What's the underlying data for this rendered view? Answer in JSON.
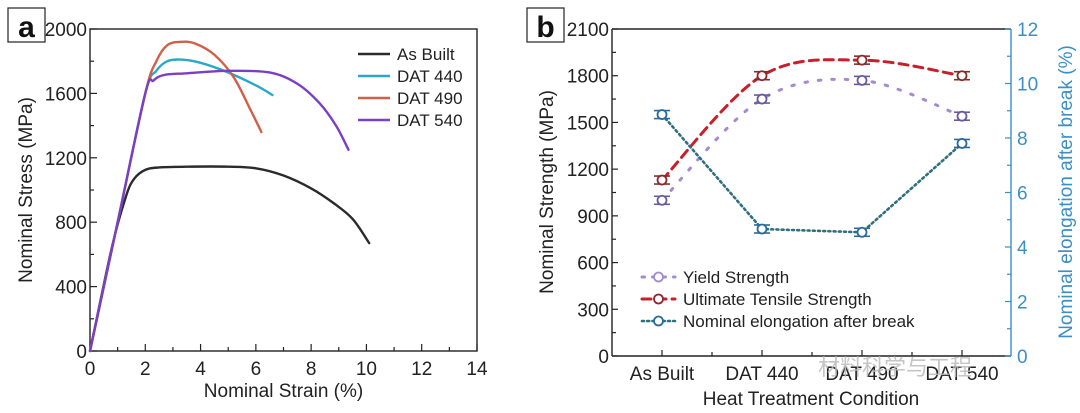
{
  "chart_data": [
    {
      "panel": "a",
      "type": "line",
      "title": "",
      "xlabel": "Nominal Strain (%)",
      "ylabel": "Nominal Stress (MPa)",
      "xlim": [
        0,
        14
      ],
      "ylim": [
        0,
        2000
      ],
      "xticks": [
        "0",
        "2",
        "4",
        "6",
        "8",
        "10",
        "12",
        "14"
      ],
      "yticks": [
        "0",
        "400",
        "800",
        "1200",
        "1600",
        "2000"
      ],
      "legend_position": "top-right",
      "grid": false,
      "series": [
        {
          "name": "As Built",
          "color": "#2b2b2b",
          "x": [
            0,
            0.8,
            1.3,
            1.6,
            2.0,
            2.5,
            3.5,
            5.0,
            6.0,
            7.0,
            8.0,
            8.8,
            9.5,
            10.1
          ],
          "y": [
            0,
            650,
            960,
            1070,
            1125,
            1140,
            1145,
            1145,
            1135,
            1090,
            1010,
            920,
            820,
            670
          ]
        },
        {
          "name": "DAT 440",
          "color": "#2aa8c8",
          "x": [
            0,
            1.0,
            2.0,
            2.4,
            2.8,
            3.3,
            4.0,
            5.0,
            6.0,
            6.6
          ],
          "y": [
            0,
            800,
            1600,
            1740,
            1800,
            1810,
            1790,
            1730,
            1650,
            1590
          ]
        },
        {
          "name": "DAT 490",
          "color": "#d0604a",
          "x": [
            0,
            1.0,
            2.0,
            2.4,
            2.8,
            3.3,
            3.8,
            4.5,
            5.2,
            5.8,
            6.2
          ],
          "y": [
            0,
            800,
            1600,
            1800,
            1900,
            1920,
            1910,
            1840,
            1700,
            1500,
            1360
          ]
        },
        {
          "name": "DAT 540",
          "color": "#7b3fc4",
          "x": [
            0,
            1.0,
            2.0,
            2.3,
            2.7,
            3.5,
            5.0,
            6.5,
            7.5,
            8.3,
            8.9,
            9.35
          ],
          "y": [
            0,
            800,
            1600,
            1680,
            1715,
            1725,
            1740,
            1730,
            1660,
            1540,
            1400,
            1250
          ]
        }
      ]
    },
    {
      "panel": "b",
      "type": "line",
      "title": "",
      "xlabel": "Heat Treatment Condition",
      "ylabel": "Nominal Strength (MPa)",
      "y2label": "Nominal elongation after break (%)",
      "categories": [
        "As Built",
        "DAT 440",
        "DAT 490",
        "DAT 540"
      ],
      "ylim": [
        0,
        2100
      ],
      "y2lim": [
        0,
        12
      ],
      "yticks": [
        "0",
        "300",
        "600",
        "900",
        "1200",
        "1500",
        "1800",
        "2100"
      ],
      "y2ticks": [
        "0",
        "2",
        "4",
        "6",
        "8",
        "10",
        "12"
      ],
      "legend_position": "bottom-left",
      "grid": false,
      "series": [
        {
          "name": "Yield Strength",
          "axis": "left",
          "color": "#a58ad0",
          "marker_color": "#6a5a9a",
          "style": "dotted-sparse",
          "values": [
            1000,
            1650,
            1770,
            1540
          ]
        },
        {
          "name": "Ultimate Tensile Strength",
          "axis": "left",
          "color": "#c8202a",
          "marker_color": "#8a2a2a",
          "style": "dashed",
          "values": [
            1130,
            1800,
            1900,
            1800
          ]
        },
        {
          "name": "Nominal elongation after break",
          "axis": "right",
          "color": "#2f6f80",
          "marker_color": "#2b6a9a",
          "style": "dotted",
          "values": [
            8.86,
            4.66,
            4.54,
            7.8
          ]
        }
      ],
      "right_axis_color": "#3b8fc4"
    }
  ],
  "panels": {
    "a": "a",
    "b": "b"
  },
  "watermark": "材料科学与工程"
}
